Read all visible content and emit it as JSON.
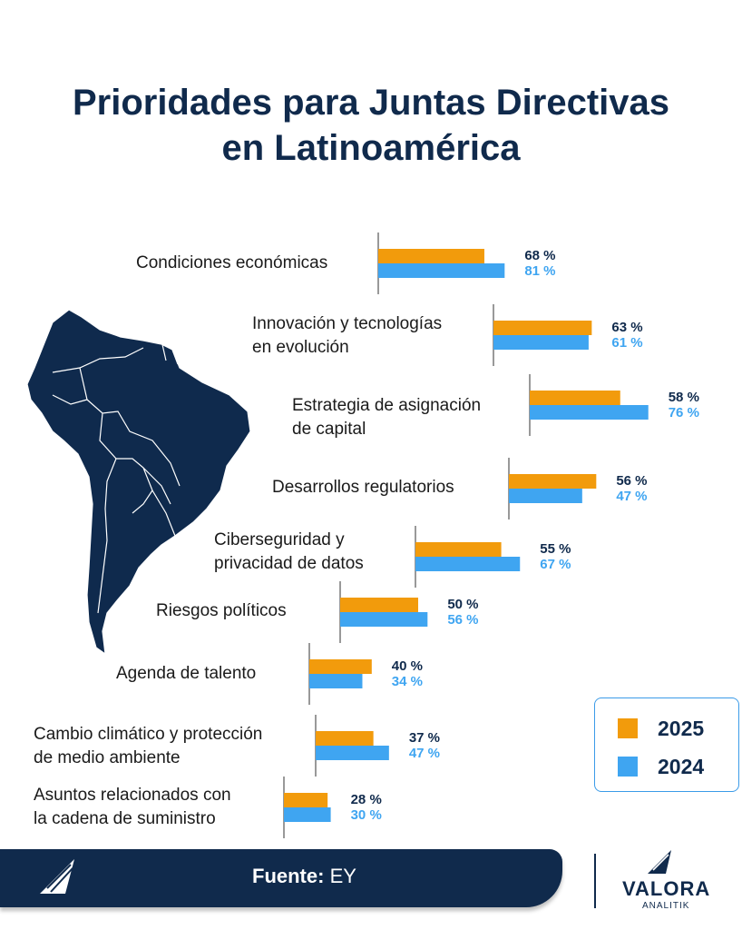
{
  "title_lines": [
    "Prioridades para Juntas Directivas",
    "en Latinoamérica"
  ],
  "chart_data": {
    "type": "bar",
    "orientation": "horizontal",
    "title": "Prioridades para Juntas Directivas en Latinoamérica",
    "categories": [
      "Condiciones económicas",
      "Innovación y tecnologías\n en evolución",
      "Estrategia de asignación\nde capital",
      "Desarrollos regulatorios",
      "Ciberseguridad y\nprivacidad de datos",
      "Riesgos políticos",
      "Agenda de talento",
      "Cambio climático y protección\nde medio ambiente",
      "Asuntos relacionados con\nla cadena de suministro"
    ],
    "series": [
      {
        "name": "2025",
        "color": "#f29b0c",
        "values": [
          68,
          63,
          58,
          56,
          55,
          50,
          40,
          37,
          28
        ]
      },
      {
        "name": "2024",
        "color": "#3fa5f1",
        "values": [
          81,
          61,
          76,
          47,
          67,
          56,
          34,
          47,
          30
        ]
      }
    ],
    "value_suffix": " %",
    "legend_position": "bottom-right"
  },
  "legend": {
    "label_2025": "2025",
    "label_2024": "2024"
  },
  "footer": {
    "source_label": "Fuente:",
    "source_value": " EY"
  },
  "brand": {
    "name": "VALORA",
    "sub": "ANALITIK",
    "navy": "#102a4c"
  }
}
